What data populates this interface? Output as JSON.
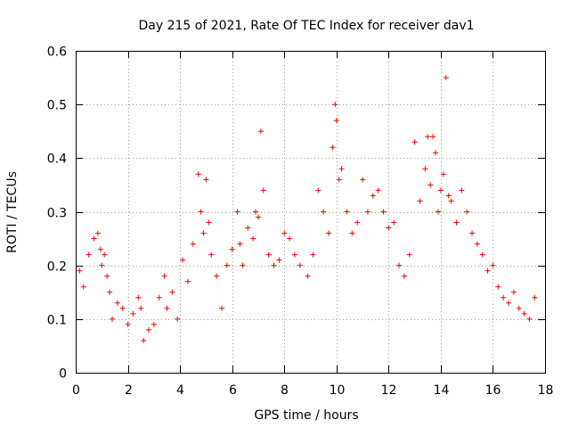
{
  "chart_data": {
    "type": "scatter",
    "title": "Day 215 of 2021, Rate Of TEC Index for receiver dav1",
    "xlabel": "GPS time / hours",
    "ylabel": "ROTI / TECUs",
    "xlim": [
      0,
      18
    ],
    "ylim": [
      0,
      0.6
    ],
    "xticks": [
      "0",
      "2",
      "4",
      "6",
      "8",
      "10",
      "12",
      "14",
      "16",
      "18"
    ],
    "yticks": [
      "0",
      "0.1",
      "0.2",
      "0.3",
      "0.4",
      "0.5",
      "0.6"
    ],
    "grid": true,
    "marker": "plus",
    "color": "#ff0000",
    "series": [
      {
        "x": [
          0.15,
          0.3,
          0.5,
          0.7,
          0.85,
          0.95,
          1.0,
          1.1,
          1.2,
          1.3,
          1.4,
          1.6,
          1.8,
          2.0,
          2.2,
          2.4,
          2.5,
          2.6,
          2.8,
          3.0,
          3.2,
          3.4,
          3.5,
          3.7,
          3.9,
          4.1,
          4.3,
          4.5,
          4.7,
          4.8,
          4.9,
          5.0,
          5.1,
          5.2,
          5.4,
          5.6,
          5.8,
          6.0,
          6.2,
          6.3,
          6.4,
          6.6,
          6.8,
          6.9,
          7.0,
          7.1,
          7.2,
          7.4,
          7.6,
          7.8,
          8.0,
          8.2,
          8.4,
          8.6,
          8.9,
          9.1,
          9.3,
          9.5,
          9.7,
          9.85,
          9.95,
          10.0,
          10.1,
          10.2,
          10.4,
          10.6,
          10.8,
          11.0,
          11.2,
          11.4,
          11.6,
          11.8,
          12.0,
          12.2,
          12.4,
          12.6,
          12.8,
          13.0,
          13.2,
          13.4,
          13.5,
          13.6,
          13.7,
          13.8,
          13.9,
          14.0,
          14.1,
          14.2,
          14.3,
          14.4,
          14.6,
          14.8,
          15.0,
          15.2,
          15.4,
          15.6,
          15.8,
          16.0,
          16.2,
          16.4,
          16.6,
          16.8,
          17.0,
          17.2,
          17.4,
          17.6
        ],
        "y": [
          0.19,
          0.16,
          0.22,
          0.25,
          0.26,
          0.23,
          0.2,
          0.22,
          0.18,
          0.15,
          0.1,
          0.13,
          0.12,
          0.09,
          0.11,
          0.14,
          0.12,
          0.06,
          0.08,
          0.09,
          0.14,
          0.18,
          0.12,
          0.15,
          0.1,
          0.21,
          0.17,
          0.24,
          0.37,
          0.3,
          0.26,
          0.36,
          0.28,
          0.22,
          0.18,
          0.12,
          0.2,
          0.23,
          0.3,
          0.24,
          0.2,
          0.27,
          0.25,
          0.3,
          0.29,
          0.45,
          0.34,
          0.22,
          0.2,
          0.21,
          0.26,
          0.25,
          0.22,
          0.2,
          0.18,
          0.22,
          0.34,
          0.3,
          0.26,
          0.42,
          0.5,
          0.47,
          0.36,
          0.38,
          0.3,
          0.26,
          0.28,
          0.36,
          0.3,
          0.33,
          0.34,
          0.3,
          0.27,
          0.28,
          0.2,
          0.18,
          0.22,
          0.43,
          0.32,
          0.38,
          0.44,
          0.35,
          0.44,
          0.41,
          0.3,
          0.34,
          0.37,
          0.55,
          0.33,
          0.32,
          0.28,
          0.34,
          0.3,
          0.26,
          0.24,
          0.22,
          0.19,
          0.2,
          0.16,
          0.14,
          0.13,
          0.15,
          0.12,
          0.11,
          0.1,
          0.14
        ]
      }
    ]
  }
}
